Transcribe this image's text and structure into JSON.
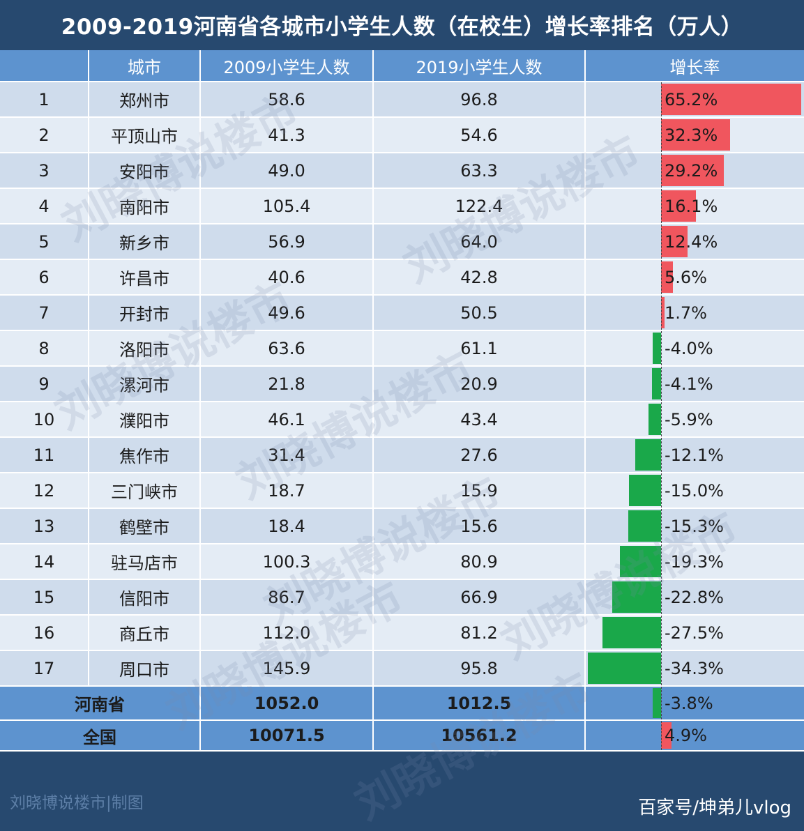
{
  "title": "2009-2019河南省各城市小学生人数（在校生）增长率排名（万人）",
  "headers": [
    "",
    "城市",
    "2009小学生人数",
    "2019小学生人数",
    "增长率"
  ],
  "chart_data": {
    "type": "table",
    "title": "2009-2019河南省各城市小学生人数（在校生）增长率排名（万人）",
    "columns": [
      "城市",
      "2009小学生人数",
      "2019小学生人数",
      "增长率"
    ],
    "rows": [
      {
        "rank": "1",
        "city": "郑州市",
        "y2009": "58.6",
        "y2019": "96.8",
        "rate_label": "65.2%",
        "rate": 65.2
      },
      {
        "rank": "2",
        "city": "平顶山市",
        "y2009": "41.3",
        "y2019": "54.6",
        "rate_label": "32.3%",
        "rate": 32.3
      },
      {
        "rank": "3",
        "city": "安阳市",
        "y2009": "49.0",
        "y2019": "63.3",
        "rate_label": "29.2%",
        "rate": 29.2
      },
      {
        "rank": "4",
        "city": "南阳市",
        "y2009": "105.4",
        "y2019": "122.4",
        "rate_label": "16.1%",
        "rate": 16.1
      },
      {
        "rank": "5",
        "city": "新乡市",
        "y2009": "56.9",
        "y2019": "64.0",
        "rate_label": "12.4%",
        "rate": 12.4
      },
      {
        "rank": "6",
        "city": "许昌市",
        "y2009": "40.6",
        "y2019": "42.8",
        "rate_label": "5.6%",
        "rate": 5.6
      },
      {
        "rank": "7",
        "city": "开封市",
        "y2009": "49.6",
        "y2019": "50.5",
        "rate_label": "1.7%",
        "rate": 1.7
      },
      {
        "rank": "8",
        "city": "洛阳市",
        "y2009": "63.6",
        "y2019": "61.1",
        "rate_label": "-4.0%",
        "rate": -4.0
      },
      {
        "rank": "9",
        "city": "漯河市",
        "y2009": "21.8",
        "y2019": "20.9",
        "rate_label": "-4.1%",
        "rate": -4.1
      },
      {
        "rank": "10",
        "city": "濮阳市",
        "y2009": "46.1",
        "y2019": "43.4",
        "rate_label": "-5.9%",
        "rate": -5.9
      },
      {
        "rank": "11",
        "city": "焦作市",
        "y2009": "31.4",
        "y2019": "27.6",
        "rate_label": "-12.1%",
        "rate": -12.1
      },
      {
        "rank": "12",
        "city": "三门峡市",
        "y2009": "18.7",
        "y2019": "15.9",
        "rate_label": "-15.0%",
        "rate": -15.0
      },
      {
        "rank": "13",
        "city": "鹤壁市",
        "y2009": "18.4",
        "y2019": "15.6",
        "rate_label": "-15.3%",
        "rate": -15.3
      },
      {
        "rank": "14",
        "city": "驻马店市",
        "y2009": "100.3",
        "y2019": "80.9",
        "rate_label": "-19.3%",
        "rate": -19.3
      },
      {
        "rank": "15",
        "city": "信阳市",
        "y2009": "86.7",
        "y2019": "66.9",
        "rate_label": "-22.8%",
        "rate": -22.8
      },
      {
        "rank": "16",
        "city": "商丘市",
        "y2009": "112.0",
        "y2019": "81.2",
        "rate_label": "-27.5%",
        "rate": -27.5
      },
      {
        "rank": "17",
        "city": "周口市",
        "y2009": "145.9",
        "y2019": "95.8",
        "rate_label": "-34.3%",
        "rate": -34.3
      }
    ],
    "summary": [
      {
        "city": "河南省",
        "y2009": "1052.0",
        "y2019": "1012.5",
        "rate_label": "-3.8%",
        "rate": -3.8
      },
      {
        "city": "全国",
        "y2009": "10071.5",
        "y2019": "10561.2",
        "rate_label": "4.9%",
        "rate": 4.9
      }
    ],
    "colors": {
      "positive": "#f0565e",
      "negative": "#1aa84a",
      "header": "#5d93cf"
    }
  },
  "watermark": "刘晓博说楼市",
  "footer": {
    "left": "刘晓博说楼市|制图",
    "right": "百家号/坤弟儿vlog"
  }
}
